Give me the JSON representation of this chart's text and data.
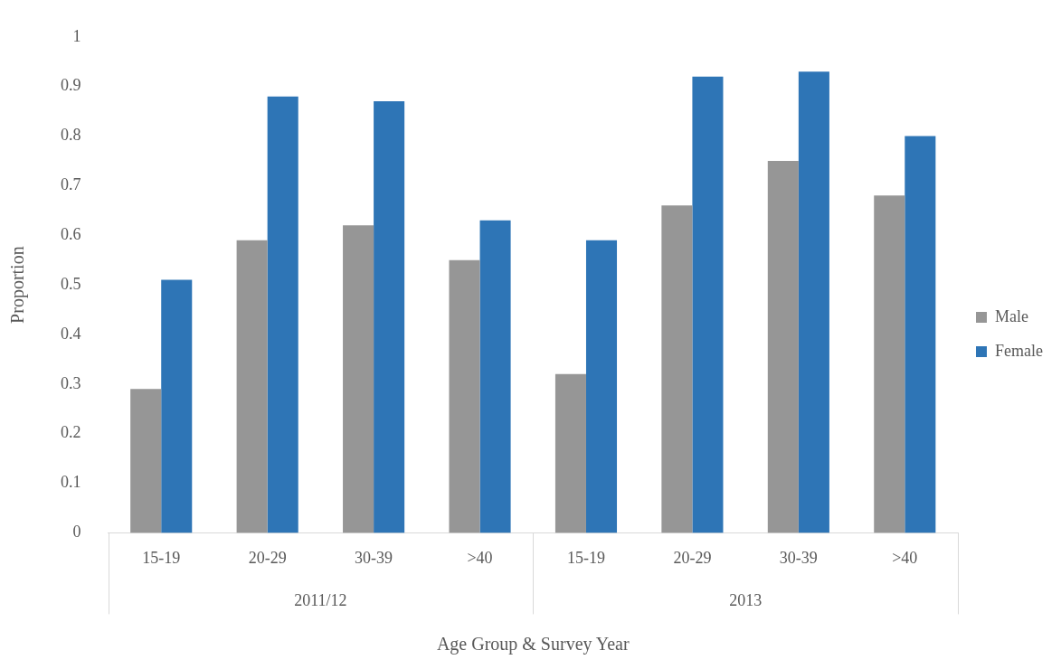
{
  "chart_data": {
    "type": "bar",
    "xlabel": "Age Group & Survey Year",
    "ylabel": "Proportion",
    "categories": [
      "15-19",
      "20-29",
      "30-39",
      ">40",
      "15-19",
      "20-29",
      "30-39",
      ">40"
    ],
    "series": [
      {
        "name": "Male",
        "color": "#969696",
        "values": [
          0.29,
          0.59,
          0.62,
          0.55,
          0.32,
          0.66,
          0.75,
          0.68
        ]
      },
      {
        "name": "Female",
        "color": "#2e75b6",
        "values": [
          0.51,
          0.88,
          0.87,
          0.63,
          0.59,
          0.92,
          0.93,
          0.8
        ]
      }
    ],
    "annotations": [
      "2011/12",
      "2013"
    ],
    "ylim": [
      0,
      1
    ],
    "yticks": [
      0,
      0.1,
      0.2,
      0.3,
      0.4,
      0.5,
      0.6,
      0.7,
      0.8,
      0.9,
      1
    ],
    "grid": false,
    "legend": "right"
  }
}
